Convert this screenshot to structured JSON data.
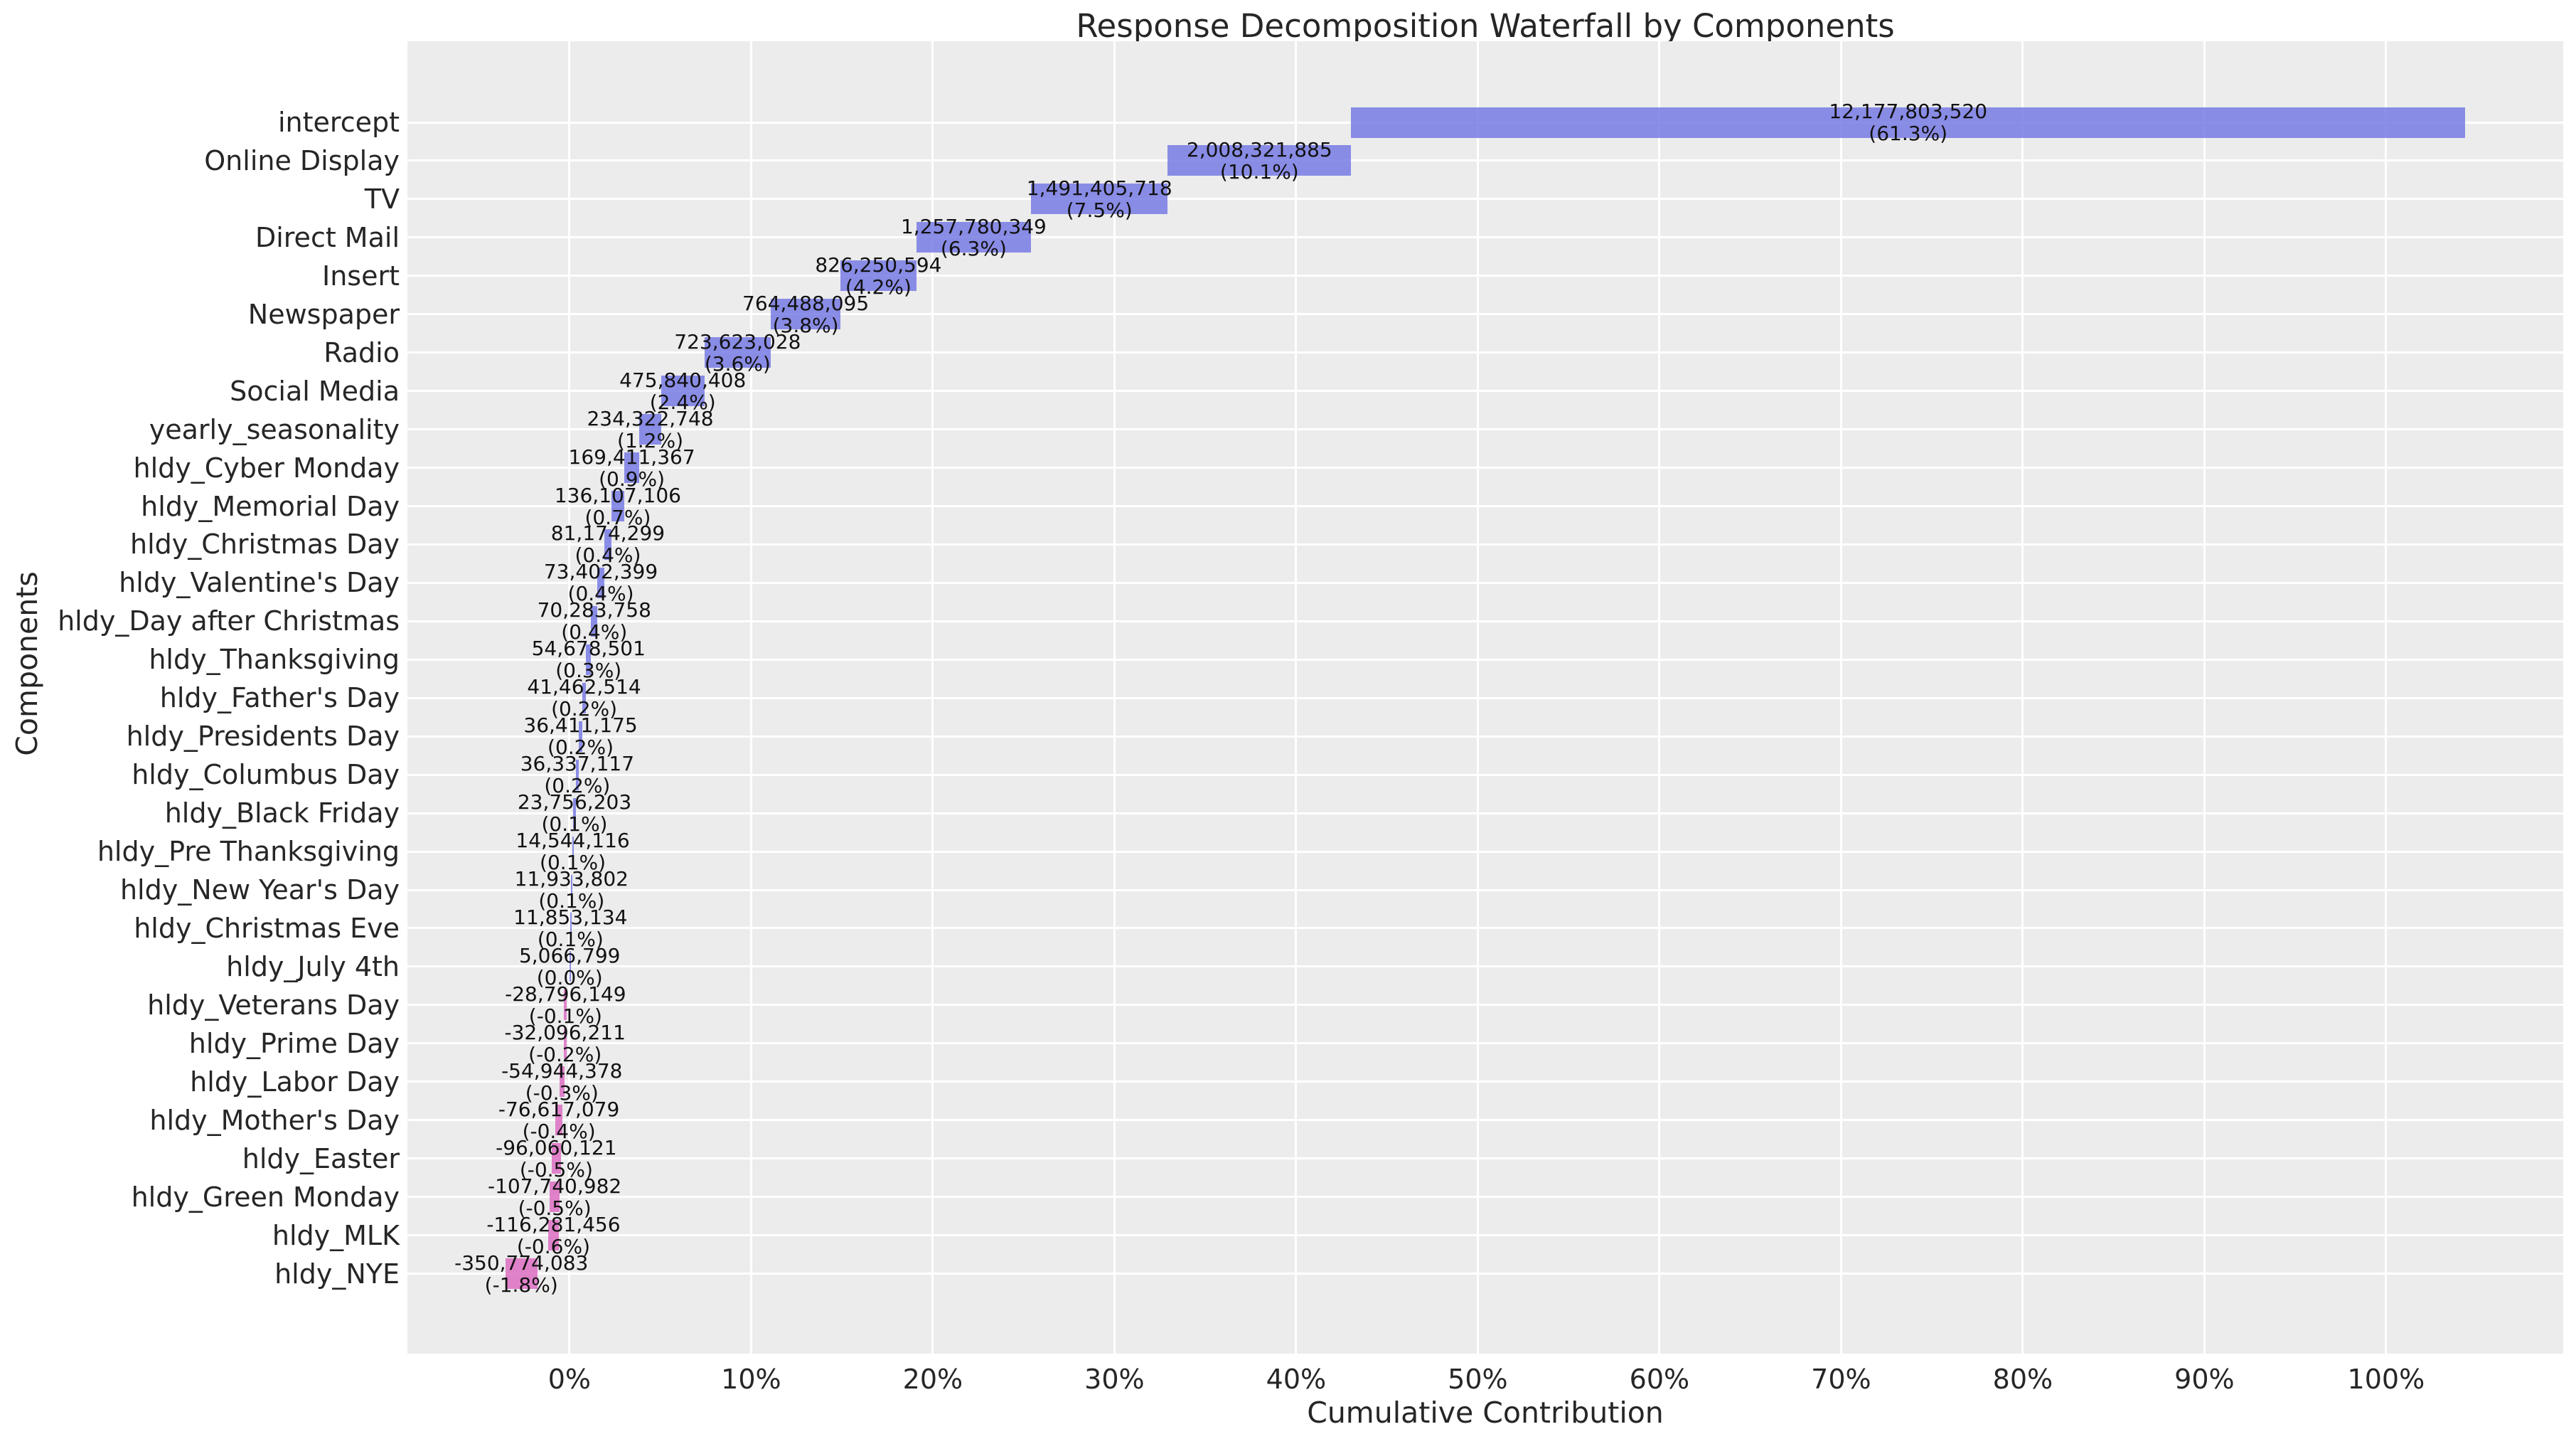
{
  "colors": {
    "positive_bar": "#787be4",
    "negative_bar": "#dd6fc3",
    "bar_alpha": 0.85,
    "plot_background": "#ececec",
    "gridline": "#ffffff",
    "text": "#262626"
  },
  "chart_data": {
    "type": "bar",
    "subtype": "horizontal-waterfall",
    "title": "Response Decomposition Waterfall by Components",
    "xlabel": "Cumulative Contribution",
    "ylabel": "Components",
    "x_ticks": [
      "0%",
      "10%",
      "20%",
      "30%",
      "40%",
      "50%",
      "60%",
      "70%",
      "80%",
      "90%",
      "100%"
    ],
    "xlim_pct": [
      -8.92,
      109.75
    ],
    "grid": true,
    "legend": false,
    "items": [
      {
        "label": "intercept",
        "value": 12177803520,
        "value_display": "12,177,803,520",
        "pct_display": "(61.3%)"
      },
      {
        "label": "Online Display",
        "value": 2008321885,
        "value_display": "2,008,321,885",
        "pct_display": "(10.1%)"
      },
      {
        "label": "TV",
        "value": 1491405718,
        "value_display": "1,491,405,718",
        "pct_display": "(7.5%)"
      },
      {
        "label": "Direct Mail",
        "value": 1257780349,
        "value_display": "1,257,780,349",
        "pct_display": "(6.3%)"
      },
      {
        "label": "Insert",
        "value": 826250594,
        "value_display": "826,250,594",
        "pct_display": "(4.2%)"
      },
      {
        "label": "Newspaper",
        "value": 764488095,
        "value_display": "764,488,095",
        "pct_display": "(3.8%)"
      },
      {
        "label": "Radio",
        "value": 723623028,
        "value_display": "723,623,028",
        "pct_display": "(3.6%)"
      },
      {
        "label": "Social Media",
        "value": 475840408,
        "value_display": "475,840,408",
        "pct_display": "(2.4%)"
      },
      {
        "label": "yearly_seasonality",
        "value": 234322748,
        "value_display": "234,322,748",
        "pct_display": "(1.2%)"
      },
      {
        "label": "hldy_Cyber Monday",
        "value": 169411367,
        "value_display": "169,411,367",
        "pct_display": "(0.9%)"
      },
      {
        "label": "hldy_Memorial Day",
        "value": 136107106,
        "value_display": "136,107,106",
        "pct_display": "(0.7%)"
      },
      {
        "label": "hldy_Christmas Day",
        "value": 81174299,
        "value_display": "81,174,299",
        "pct_display": "(0.4%)"
      },
      {
        "label": "hldy_Valentine's Day",
        "value": 73402399,
        "value_display": "73,402,399",
        "pct_display": "(0.4%)"
      },
      {
        "label": "hldy_Day after Christmas",
        "value": 70283758,
        "value_display": "70,283,758",
        "pct_display": "(0.4%)"
      },
      {
        "label": "hldy_Thanksgiving",
        "value": 54678501,
        "value_display": "54,678,501",
        "pct_display": "(0.3%)"
      },
      {
        "label": "hldy_Father's Day",
        "value": 41462514,
        "value_display": "41,462,514",
        "pct_display": "(0.2%)"
      },
      {
        "label": "hldy_Presidents Day",
        "value": 36411175,
        "value_display": "36,411,175",
        "pct_display": "(0.2%)"
      },
      {
        "label": "hldy_Columbus Day",
        "value": 36337117,
        "value_display": "36,337,117",
        "pct_display": "(0.2%)"
      },
      {
        "label": "hldy_Black Friday",
        "value": 23756203,
        "value_display": "23,756,203",
        "pct_display": "(0.1%)"
      },
      {
        "label": "hldy_Pre Thanksgiving",
        "value": 14544116,
        "value_display": "14,544,116",
        "pct_display": "(0.1%)"
      },
      {
        "label": "hldy_New Year's Day",
        "value": 11933802,
        "value_display": "11,933,802",
        "pct_display": "(0.1%)"
      },
      {
        "label": "hldy_Christmas Eve",
        "value": 11853134,
        "value_display": "11,853,134",
        "pct_display": "(0.1%)"
      },
      {
        "label": "hldy_July 4th",
        "value": 5066799,
        "value_display": "5,066,799",
        "pct_display": "(0.0%)"
      },
      {
        "label": "hldy_Veterans Day",
        "value": -28796149,
        "value_display": "-28,796,149",
        "pct_display": "(-0.1%)"
      },
      {
        "label": "hldy_Prime Day",
        "value": -32096211,
        "value_display": "-32,096,211",
        "pct_display": "(-0.2%)"
      },
      {
        "label": "hldy_Labor Day",
        "value": -54944378,
        "value_display": "-54,944,378",
        "pct_display": "(-0.3%)"
      },
      {
        "label": "hldy_Mother's Day",
        "value": -76617079,
        "value_display": "-76,617,079",
        "pct_display": "(-0.4%)"
      },
      {
        "label": "hldy_Easter",
        "value": -96060121,
        "value_display": "-96,060,121",
        "pct_display": "(-0.5%)"
      },
      {
        "label": "hldy_Green Monday",
        "value": -107740982,
        "value_display": "-107,740,982",
        "pct_display": "(-0.5%)"
      },
      {
        "label": "hldy_MLK",
        "value": -116281456,
        "value_display": "-116,281,456",
        "pct_display": "(-0.6%)"
      },
      {
        "label": "hldy_NYE",
        "value": -350774083,
        "value_display": "-350,774,083",
        "pct_display": "(-1.8%)"
      }
    ]
  }
}
